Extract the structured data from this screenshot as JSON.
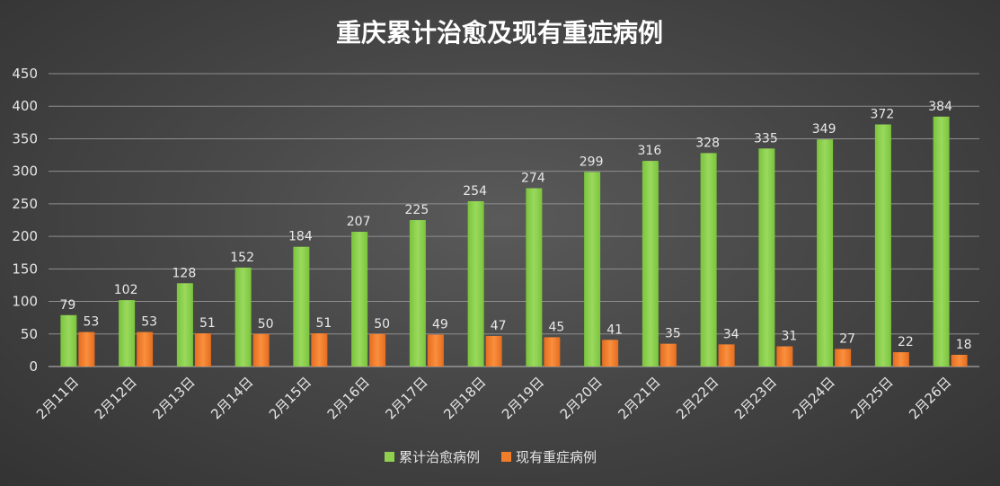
{
  "chart_data": {
    "type": "bar",
    "title": "重庆累计治愈及现有重症病例",
    "xlabel": "",
    "ylabel": "",
    "categories": [
      "2月11日",
      "2月12日",
      "2月13日",
      "2月14日",
      "2月15日",
      "2月16日",
      "2月17日",
      "2月18日",
      "2月19日",
      "2月20日",
      "2月21日",
      "2月22日",
      "2月23日",
      "2月24日",
      "2月25日",
      "2月26日"
    ],
    "series": [
      {
        "name": "累计治愈病例",
        "color": "#8fd14f",
        "values": [
          79,
          102,
          128,
          152,
          184,
          207,
          225,
          254,
          274,
          299,
          316,
          328,
          335,
          349,
          372,
          384
        ]
      },
      {
        "name": "现有重症病例",
        "color": "#f07d2a",
        "values": [
          53,
          53,
          51,
          50,
          51,
          50,
          49,
          47,
          45,
          41,
          35,
          34,
          31,
          27,
          22,
          18
        ]
      }
    ],
    "ylim": [
      0,
      450
    ],
    "yticks": [
      0,
      50,
      100,
      150,
      200,
      250,
      300,
      350,
      400,
      450
    ],
    "grid": true,
    "legend": "bottom"
  }
}
